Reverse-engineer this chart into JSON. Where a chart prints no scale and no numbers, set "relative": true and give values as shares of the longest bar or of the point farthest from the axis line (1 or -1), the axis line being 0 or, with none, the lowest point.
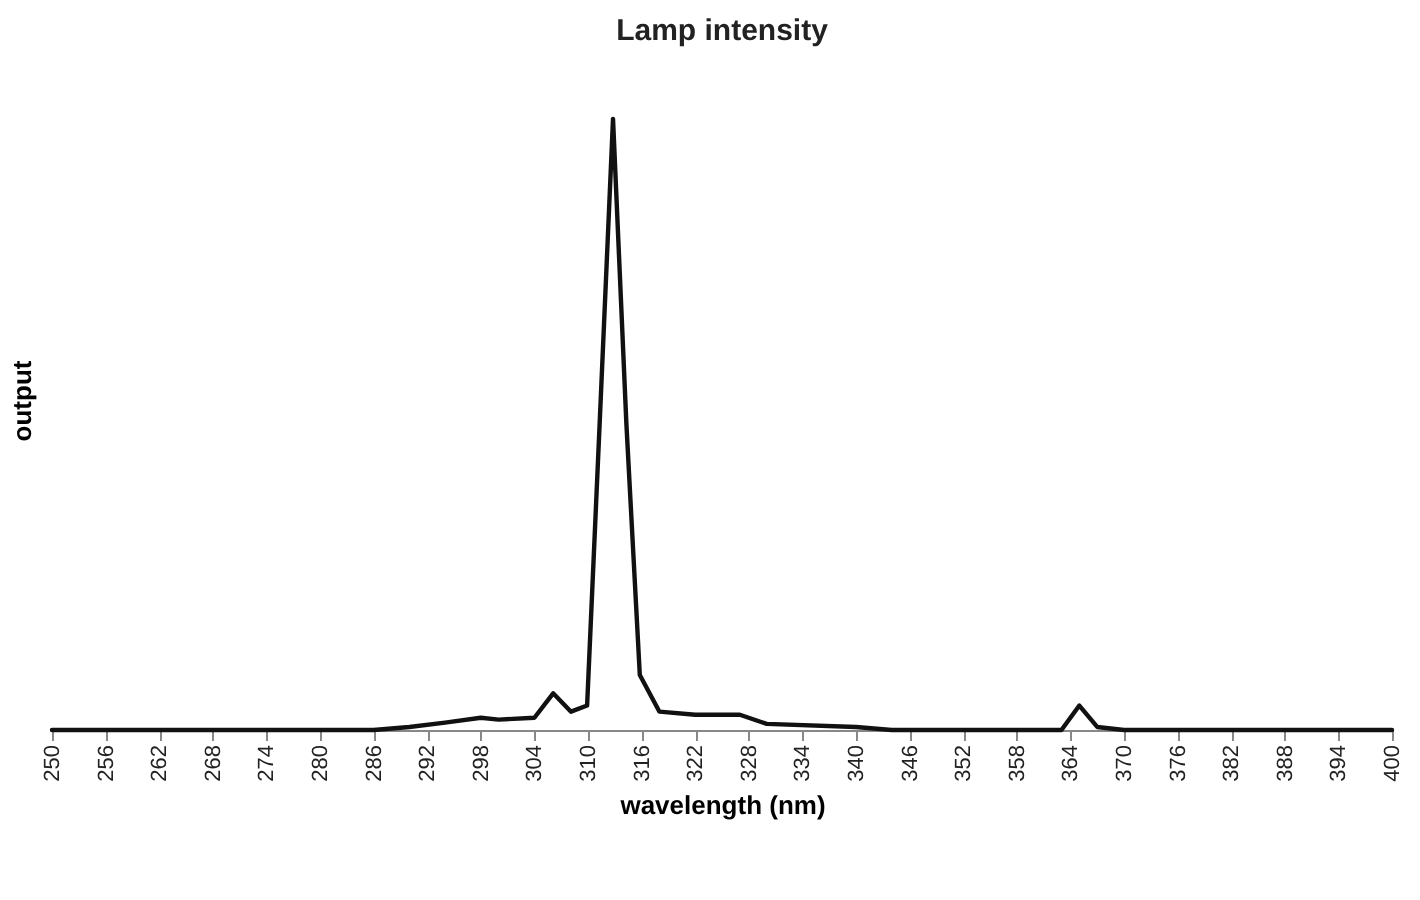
{
  "chart_data": {
    "type": "line",
    "title": "Lamp intensity",
    "xlabel": "wavelength (nm)",
    "ylabel": "output",
    "relative": true,
    "x": [
      250,
      286,
      290,
      294,
      298,
      300,
      304,
      306.1,
      308.1,
      309.9,
      311.3,
      312.8,
      314.3,
      315.8,
      318,
      322,
      327,
      330,
      340,
      344,
      363,
      365,
      367,
      370,
      400
    ],
    "series": [
      {
        "color": "#111111",
        "values": [
          0,
          0,
          0.005,
          0.012,
          0.02,
          0.017,
          0.02,
          0.06,
          0.03,
          0.04,
          0.5,
          1,
          0.5,
          0.09,
          0.03,
          0.025,
          0.025,
          0.01,
          0.005,
          0,
          0,
          0.04,
          0.005,
          0,
          0
        ]
      }
    ],
    "xlim": [
      250,
      400
    ],
    "xticks": [
      250,
      256,
      262,
      268,
      274,
      280,
      286,
      292,
      298,
      304,
      310,
      316,
      322,
      328,
      334,
      340,
      346,
      352,
      358,
      364,
      370,
      376,
      382,
      388,
      394,
      400
    ],
    "grid": false,
    "marker": "none",
    "line_style": "solid"
  }
}
